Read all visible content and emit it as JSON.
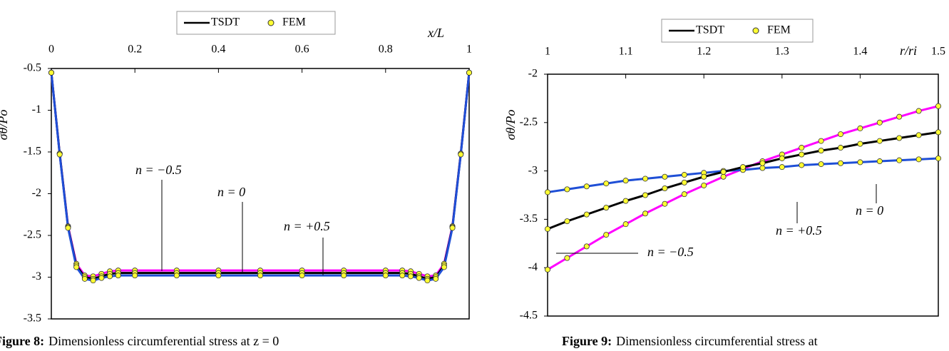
{
  "chart_data": [
    {
      "type": "line",
      "legend": [
        "TSDT",
        "FEM"
      ],
      "xlabel": "x/L",
      "ylabel": "σθ/Po",
      "caption_label": "Figure 8:",
      "caption": "Dimensionless circumferential stress at z = 0",
      "x": [
        0,
        0.02,
        0.04,
        0.06,
        0.08,
        0.1,
        0.12,
        0.14,
        0.16,
        0.2,
        0.3,
        0.4,
        0.5,
        0.6,
        0.7,
        0.8,
        0.84,
        0.86,
        0.88,
        0.9,
        0.92,
        0.94,
        0.96,
        0.98,
        1
      ],
      "series": [
        {
          "name": "n = −0.5",
          "color": "#ff00ff",
          "values": [
            -0.55,
            -1.52,
            -2.39,
            -2.84,
            -2.98,
            -2.99,
            -2.96,
            -2.93,
            -2.92,
            -2.92,
            -2.92,
            -2.92,
            -2.92,
            -2.92,
            -2.92,
            -2.92,
            -2.92,
            -2.93,
            -2.96,
            -2.99,
            -2.98,
            -2.84,
            -2.39,
            -1.52,
            -0.55
          ]
        },
        {
          "name": "n = 0",
          "color": "#000000",
          "values": [
            -0.55,
            -1.52,
            -2.4,
            -2.86,
            -3.0,
            -3.02,
            -2.99,
            -2.96,
            -2.95,
            -2.95,
            -2.95,
            -2.95,
            -2.95,
            -2.95,
            -2.95,
            -2.95,
            -2.95,
            -2.96,
            -2.99,
            -3.02,
            -3.0,
            -2.86,
            -2.4,
            -1.52,
            -0.55
          ]
        },
        {
          "name": "n = +0.5",
          "color": "#1f4fd6",
          "values": [
            -0.55,
            -1.53,
            -2.41,
            -2.88,
            -3.02,
            -3.04,
            -3.01,
            -2.99,
            -2.98,
            -2.98,
            -2.98,
            -2.98,
            -2.98,
            -2.98,
            -2.98,
            -2.98,
            -2.98,
            -2.99,
            -3.01,
            -3.04,
            -3.02,
            -2.88,
            -2.41,
            -1.53,
            -0.55
          ]
        }
      ],
      "marker_color": "#ffff33",
      "xlim": [
        0,
        1
      ],
      "xticks": [
        0,
        0.2,
        0.4,
        0.6,
        0.8,
        1
      ],
      "ylim": [
        -3.5,
        -0.5
      ],
      "yticks": [
        -3.5,
        -3,
        -2.5,
        -2,
        -1.5,
        -1,
        -0.5
      ]
    },
    {
      "type": "line",
      "legend": [
        "TSDT",
        "FEM"
      ],
      "xlabel": "r/ri",
      "ylabel": "σθ/Po",
      "caption_label": "Figure 9:",
      "caption": "Dimensionless circumferential stress at",
      "x": [
        1,
        1.025,
        1.05,
        1.075,
        1.1,
        1.125,
        1.15,
        1.175,
        1.2,
        1.225,
        1.25,
        1.275,
        1.3,
        1.325,
        1.35,
        1.375,
        1.4,
        1.425,
        1.45,
        1.475,
        1.5
      ],
      "series": [
        {
          "name": "n = −0.5",
          "color": "#ff00ff",
          "values": [
            -4.02,
            -3.9,
            -3.78,
            -3.66,
            -3.55,
            -3.44,
            -3.34,
            -3.24,
            -3.15,
            -3.06,
            -2.98,
            -2.9,
            -2.83,
            -2.76,
            -2.69,
            -2.62,
            -2.56,
            -2.5,
            -2.44,
            -2.38,
            -2.33
          ]
        },
        {
          "name": "n = +0.5",
          "color": "#1f4fd6",
          "values": [
            -3.22,
            -3.19,
            -3.16,
            -3.13,
            -3.1,
            -3.08,
            -3.06,
            -3.04,
            -3.02,
            -3.0,
            -2.99,
            -2.97,
            -2.96,
            -2.94,
            -2.93,
            -2.92,
            -2.91,
            -2.9,
            -2.89,
            -2.88,
            -2.87
          ]
        },
        {
          "name": "n = 0",
          "color": "#000000",
          "values": [
            -3.6,
            -3.52,
            -3.45,
            -3.38,
            -3.31,
            -3.25,
            -3.18,
            -3.12,
            -3.06,
            -3.01,
            -2.96,
            -2.92,
            -2.87,
            -2.83,
            -2.79,
            -2.76,
            -2.72,
            -2.69,
            -2.66,
            -2.63,
            -2.6
          ]
        }
      ],
      "marker_color": "#ffff33",
      "xlim": [
        1,
        1.5
      ],
      "xticks": [
        1,
        1.1,
        1.2,
        1.3,
        1.4,
        1.5
      ],
      "ylim": [
        -4.5,
        -2
      ],
      "yticks": [
        -4.5,
        -4,
        -3.5,
        -3,
        -2.5,
        -2
      ]
    }
  ]
}
